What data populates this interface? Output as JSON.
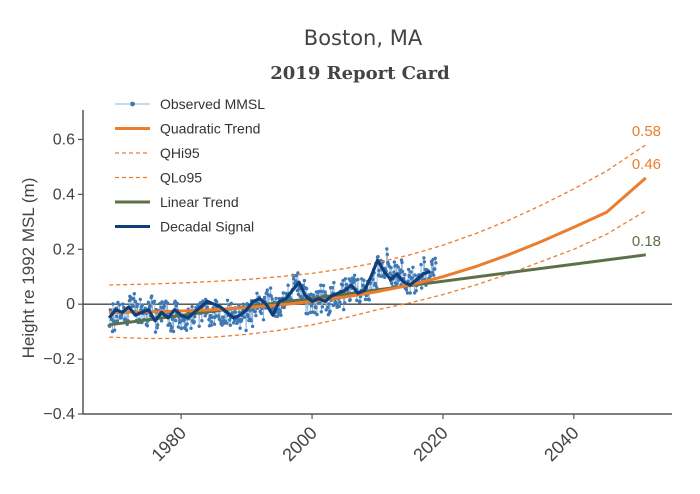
{
  "chart_data": {
    "type": "line",
    "title": "Boston, MA",
    "subtitle": "2019 Report Card",
    "ylabel": "Height re 1992 MSL (m)",
    "xlabel": "",
    "xlim": [
      1965,
      2055
    ],
    "ylim": [
      -0.4,
      0.7
    ],
    "x_ticks": [
      1980,
      2000,
      2020,
      2040
    ],
    "y_ticks": [
      -0.4,
      -0.2,
      0,
      0.2,
      0.4,
      0.6
    ],
    "y_tick_labels": [
      "−0.4",
      "−0.2",
      "0",
      "0.2",
      "0.4",
      "0.6"
    ],
    "grid": false,
    "zero_line": true,
    "legend_position": "top-left",
    "colors": {
      "observed": "#3f78b3",
      "quadratic": "#ea7d2e",
      "linear": "#5e7047",
      "decadal": "#0e3f7a",
      "axis": "#555555"
    },
    "series": [
      {
        "name": "Observed MMSL",
        "style": "markers+line",
        "x_start": 1969,
        "x_end": 2018.9,
        "points_per_year": 12,
        "annual_mean": [
          -0.06,
          -0.02,
          -0.04,
          0.0,
          -0.03,
          -0.05,
          -0.01,
          -0.05,
          -0.02,
          -0.07,
          -0.03,
          -0.06,
          -0.04,
          -0.03,
          -0.01,
          -0.02,
          -0.03,
          -0.04,
          -0.02,
          -0.04,
          -0.05,
          -0.03,
          0.0,
          -0.01,
          0.01,
          -0.02,
          0.0,
          0.03,
          0.06,
          0.05,
          0.0,
          0.01,
          0.02,
          0.0,
          0.02,
          0.03,
          0.04,
          0.07,
          0.05,
          0.05,
          0.08,
          0.13,
          0.15,
          0.1,
          0.11,
          0.08,
          0.09,
          0.1,
          0.12,
          0.13
        ],
        "spread": 0.05
      },
      {
        "name": "Quadratic Trend",
        "style": "solid",
        "x": [
          1969,
          1975,
          1980,
          1985,
          1990,
          1995,
          2000,
          2005,
          2010,
          2015,
          2020,
          2025,
          2030,
          2035,
          2040,
          2045,
          2051
        ],
        "y": [
          -0.03,
          -0.028,
          -0.025,
          -0.02,
          -0.012,
          -0.003,
          0.01,
          0.026,
          0.046,
          0.07,
          0.1,
          0.137,
          0.18,
          0.228,
          0.28,
          0.335,
          0.46
        ]
      },
      {
        "name": "QHi95",
        "style": "dashed",
        "x": [
          1969,
          1975,
          1980,
          1985,
          1990,
          1995,
          2000,
          2005,
          2010,
          2015,
          2020,
          2025,
          2030,
          2035,
          2040,
          2045,
          2051
        ],
        "y": [
          0.07,
          0.073,
          0.077,
          0.083,
          0.09,
          0.1,
          0.112,
          0.13,
          0.152,
          0.18,
          0.215,
          0.257,
          0.305,
          0.36,
          0.42,
          0.485,
          0.58
        ]
      },
      {
        "name": "QLo95",
        "style": "dashed",
        "x": [
          1969,
          1975,
          1980,
          1985,
          1990,
          1995,
          2000,
          2005,
          2010,
          2015,
          2020,
          2025,
          2030,
          2035,
          2040,
          2045,
          2051
        ],
        "y": [
          -0.12,
          -0.125,
          -0.125,
          -0.12,
          -0.11,
          -0.095,
          -0.075,
          -0.05,
          -0.02,
          0.005,
          0.035,
          0.07,
          0.11,
          0.155,
          0.2,
          0.255,
          0.34
        ]
      },
      {
        "name": "Linear Trend",
        "style": "solid",
        "x": [
          1969,
          2051
        ],
        "y": [
          -0.075,
          0.18
        ]
      },
      {
        "name": "Decadal Signal",
        "style": "solid-thick",
        "x": [
          1969,
          1970,
          1971,
          1972,
          1973,
          1974,
          1975,
          1976,
          1977,
          1978,
          1979,
          1980,
          1981,
          1982,
          1983,
          1984,
          1985,
          1986,
          1987,
          1988,
          1989,
          1990,
          1991,
          1992,
          1993,
          1994,
          1995,
          1996,
          1997,
          1998,
          1999,
          2000,
          2001,
          2002,
          2003,
          2004,
          2005,
          2006,
          2007,
          2008,
          2009,
          2010,
          2011,
          2012,
          2013,
          2014,
          2015,
          2016,
          2017,
          2018
        ],
        "y": [
          -0.05,
          -0.02,
          -0.03,
          -0.01,
          -0.04,
          -0.03,
          -0.02,
          -0.06,
          -0.03,
          -0.05,
          -0.02,
          -0.04,
          -0.05,
          -0.03,
          -0.01,
          0.01,
          0.0,
          -0.01,
          -0.03,
          -0.05,
          -0.04,
          -0.02,
          0.01,
          0.02,
          0.0,
          -0.04,
          0.01,
          0.02,
          0.05,
          0.08,
          0.03,
          0.01,
          0.02,
          0.01,
          0.03,
          0.04,
          0.05,
          0.07,
          0.04,
          0.05,
          0.1,
          0.16,
          0.12,
          0.09,
          0.11,
          0.08,
          0.07,
          0.09,
          0.11,
          0.12
        ]
      }
    ],
    "end_labels": [
      {
        "text": "0.58",
        "series": "QHi95",
        "value": 0.58
      },
      {
        "text": "0.46",
        "series": "Quadratic Trend",
        "value": 0.46
      },
      {
        "text": "0.18",
        "series": "Linear Trend",
        "value": 0.18
      }
    ]
  }
}
